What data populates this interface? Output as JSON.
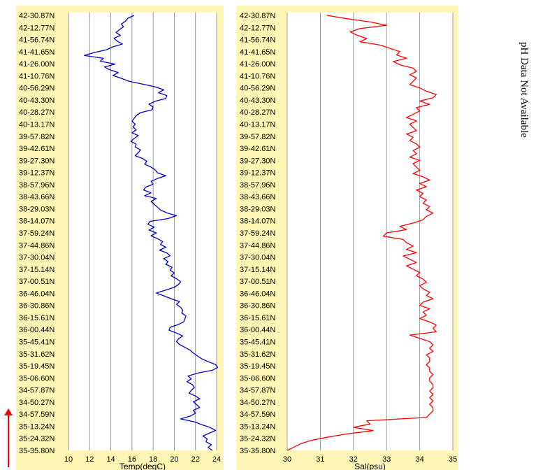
{
  "chart_data": [
    {
      "type": "line",
      "xlabel": "Temp(degC)",
      "xlim": [
        10,
        24
      ],
      "xticks": [
        10,
        12,
        14,
        16,
        18,
        20,
        22,
        24
      ],
      "ylabels": [
        "42-30.87N",
        "42-12.77N",
        "41-56.74N",
        "41-41.65N",
        "41-26.00N",
        "41-10.76N",
        "40-56.29N",
        "40-43.30N",
        "40-28.27N",
        "40-13.17N",
        "39-57.82N",
        "39-42.61N",
        "39-27.30N",
        "39-12.37N",
        "38-57.96N",
        "38-43.66N",
        "38-29.03N",
        "38-14.07N",
        "37-59.24N",
        "37-44.86N",
        "37-30.04N",
        "37-15.14N",
        "37-00.51N",
        "36-46.04N",
        "36-30.86N",
        "36-15.61N",
        "36-00.44N",
        "35-45.41N",
        "35-31.62N",
        "35-19.45N",
        "35-06.60N",
        "34-57.87N",
        "34-50.27N",
        "34-57.59N",
        "35-13.24N",
        "35-24.32N",
        "35-35.80N"
      ],
      "grid": true,
      "series": [
        {
          "color": "#0000cc",
          "values": [
            16.2,
            15.6,
            15.4,
            15.0,
            15.2,
            14.8,
            14.5,
            14.9,
            14.3,
            14.6,
            15.1,
            14.2,
            13.6,
            12.4,
            11.5,
            13.3,
            13.0,
            14.4,
            13.4,
            13.9,
            14.7,
            14.2,
            15.0,
            15.7,
            17.0,
            18.2,
            19.0,
            18.5,
            19.3,
            19.2,
            18.2,
            17.6,
            18.0,
            17.9,
            16.8,
            16.4,
            16.2,
            16.0,
            16.3,
            16.1,
            16.4,
            16.0,
            16.6,
            16.2,
            15.9,
            16.4,
            16.3,
            16.8,
            16.6,
            16.3,
            17.0,
            17.4,
            17.2,
            17.8,
            18.2,
            18.4,
            19.2,
            18.4,
            17.8,
            18.0,
            17.3,
            17.1,
            17.8,
            17.2,
            18.3,
            17.8,
            18.1,
            18.4,
            18.7,
            19.3,
            20.2,
            19.4,
            17.7,
            17.5,
            18.1,
            17.6,
            18.3,
            17.8,
            18.4,
            18.9,
            18.7,
            19.2,
            18.6,
            19.3,
            19.6,
            19.0,
            19.4,
            19.2,
            19.8,
            19.6,
            20.0,
            19.7,
            20.2,
            20.6,
            20.4,
            20.0,
            19.2,
            18.3,
            19.0,
            19.7,
            20.5,
            20.2,
            20.6,
            20.8,
            20.7,
            21.1,
            21.0,
            20.9,
            20.4,
            19.6,
            19.5,
            20.2,
            20.8,
            20.4,
            20.2,
            20.5,
            21.0,
            21.5,
            21.8,
            22.2,
            22.6,
            23.2,
            23.9,
            24.1,
            23.6,
            22.2,
            21.3,
            21.6,
            21.2,
            21.7,
            21.9,
            21.6,
            21.4,
            22.0,
            22.4,
            21.8,
            22.1,
            22.4,
            21.8,
            22.0,
            21.5,
            20.6,
            21.9,
            22.6,
            23.4,
            23.9,
            23.3,
            22.7,
            23.1,
            23.0,
            23.5,
            23.2,
            23.6
          ]
        }
      ]
    },
    {
      "type": "line",
      "xlabel": "Sal(psu)",
      "xlim": [
        30,
        35
      ],
      "xticks": [
        30,
        31,
        32,
        33,
        34,
        35
      ],
      "ylabels": [
        "42-30.87N",
        "42-12.77N",
        "41-56.74N",
        "41-41.65N",
        "41-26.00N",
        "41-10.76N",
        "40-56.29N",
        "40-43.30N",
        "40-28.27N",
        "40-13.17N",
        "39-57.82N",
        "39-42.61N",
        "39-27.30N",
        "39-12.37N",
        "38-57.96N",
        "38-43.66N",
        "38-29.03N",
        "38-14.07N",
        "37-59.24N",
        "37-44.86N",
        "37-30.04N",
        "37-15.14N",
        "37-00.51N",
        "36-46.04N",
        "36-30.86N",
        "36-15.61N",
        "36-00.44N",
        "35-45.41N",
        "35-31.62N",
        "35-19.45N",
        "35-06.60N",
        "34-57.87N",
        "34-50.27N",
        "34-57.59N",
        "35-13.24N",
        "35-24.32N",
        "35-35.80N"
      ],
      "grid": true,
      "series": [
        {
          "color": "#ff0000",
          "values": [
            31.2,
            31.8,
            32.5,
            33.0,
            32.2,
            31.9,
            32.1,
            32.4,
            32.2,
            32.8,
            33.1,
            33.4,
            33.3,
            33.6,
            33.2,
            33.4,
            33.8,
            33.9,
            33.7,
            33.9,
            33.8,
            33.7,
            34.0,
            34.2,
            34.5,
            34.4,
            34.0,
            34.3,
            33.9,
            34.0,
            33.8,
            33.6,
            33.9,
            33.7,
            33.8,
            33.9,
            33.6,
            33.8,
            33.7,
            33.9,
            34.0,
            33.8,
            33.9,
            33.7,
            34.0,
            33.8,
            33.9,
            34.0,
            33.8,
            34.1,
            34.3,
            34.0,
            34.2,
            33.9,
            34.1,
            34.0,
            34.2,
            34.1,
            34.3,
            34.2,
            34.4,
            34.2,
            34.1,
            33.8,
            33.4,
            33.6,
            33.0,
            32.9,
            33.5,
            33.6,
            33.8,
            33.6,
            33.9,
            33.5,
            33.7,
            33.9,
            33.6,
            33.8,
            34.0,
            33.9,
            34.1,
            34.2,
            34.0,
            34.1,
            34.3,
            34.2,
            34.4,
            34.1,
            34.0,
            34.3,
            34.1,
            34.2,
            34.0,
            34.3,
            34.5,
            34.4,
            34.5,
            33.7,
            34.0,
            34.3,
            34.4,
            34.3,
            34.4,
            34.2,
            34.3,
            34.3,
            34.2,
            34.3,
            34.3,
            34.4,
            34.3,
            34.3,
            34.4,
            34.4,
            34.3,
            34.4,
            34.3,
            34.4,
            34.3,
            34.4,
            34.4,
            34.3,
            34.2,
            32.4,
            32.5,
            32.0,
            32.6,
            31.8,
            31.2,
            30.7,
            30.4,
            30.2,
            30.0
          ]
        }
      ]
    }
  ],
  "note": "pH Data Not Available",
  "arrow": {
    "color": "#ff0000"
  }
}
